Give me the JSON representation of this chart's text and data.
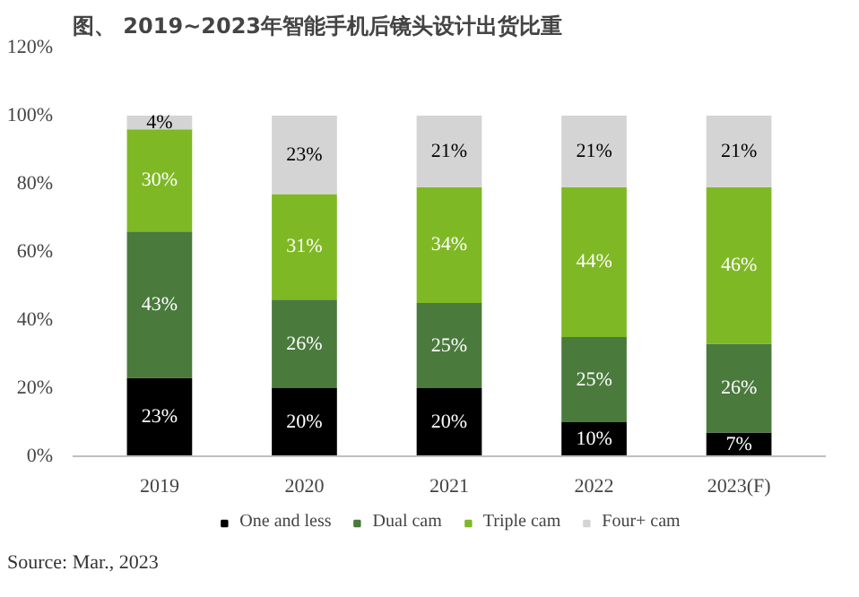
{
  "chart_data": {
    "type": "bar",
    "stacked": true,
    "title": "图、 2019~2023年智能手机后镜头设计出货比重",
    "categories": [
      "2019",
      "2020",
      "2021",
      "2022",
      "2023(F)"
    ],
    "series": [
      {
        "name": "One and less",
        "color": "#000000",
        "values": [
          23,
          20,
          20,
          10,
          7
        ],
        "value_labels": [
          "23%",
          "20%",
          "20%",
          "10%",
          "7%"
        ]
      },
      {
        "name": "Dual cam",
        "color": "#4a7a3c",
        "values": [
          43,
          26,
          25,
          25,
          26
        ],
        "value_labels": [
          "43%",
          "26%",
          "25%",
          "25%",
          "26%"
        ]
      },
      {
        "name": "Triple cam",
        "color": "#7fb825",
        "values": [
          30,
          31,
          34,
          44,
          46
        ],
        "value_labels": [
          "30%",
          "31%",
          "34%",
          "44%",
          "46%"
        ]
      },
      {
        "name": "Four+ cam",
        "color": "#d4d4d4",
        "values": [
          4,
          23,
          21,
          21,
          21
        ],
        "value_labels": [
          "4%",
          "23%",
          "21%",
          "21%",
          "21%"
        ]
      }
    ],
    "ylim": [
      0,
      120
    ],
    "yticks": [
      {
        "value": 0,
        "label": "0%"
      },
      {
        "value": 20,
        "label": "20%"
      },
      {
        "value": 40,
        "label": "40%"
      },
      {
        "value": 60,
        "label": "60%"
      },
      {
        "value": 80,
        "label": "80%"
      },
      {
        "value": 100,
        "label": "100%"
      },
      {
        "value": 120,
        "label": "120%"
      }
    ],
    "grid": false,
    "legend": "bottom",
    "annotations": [
      "Source: Mar., 2023"
    ]
  }
}
